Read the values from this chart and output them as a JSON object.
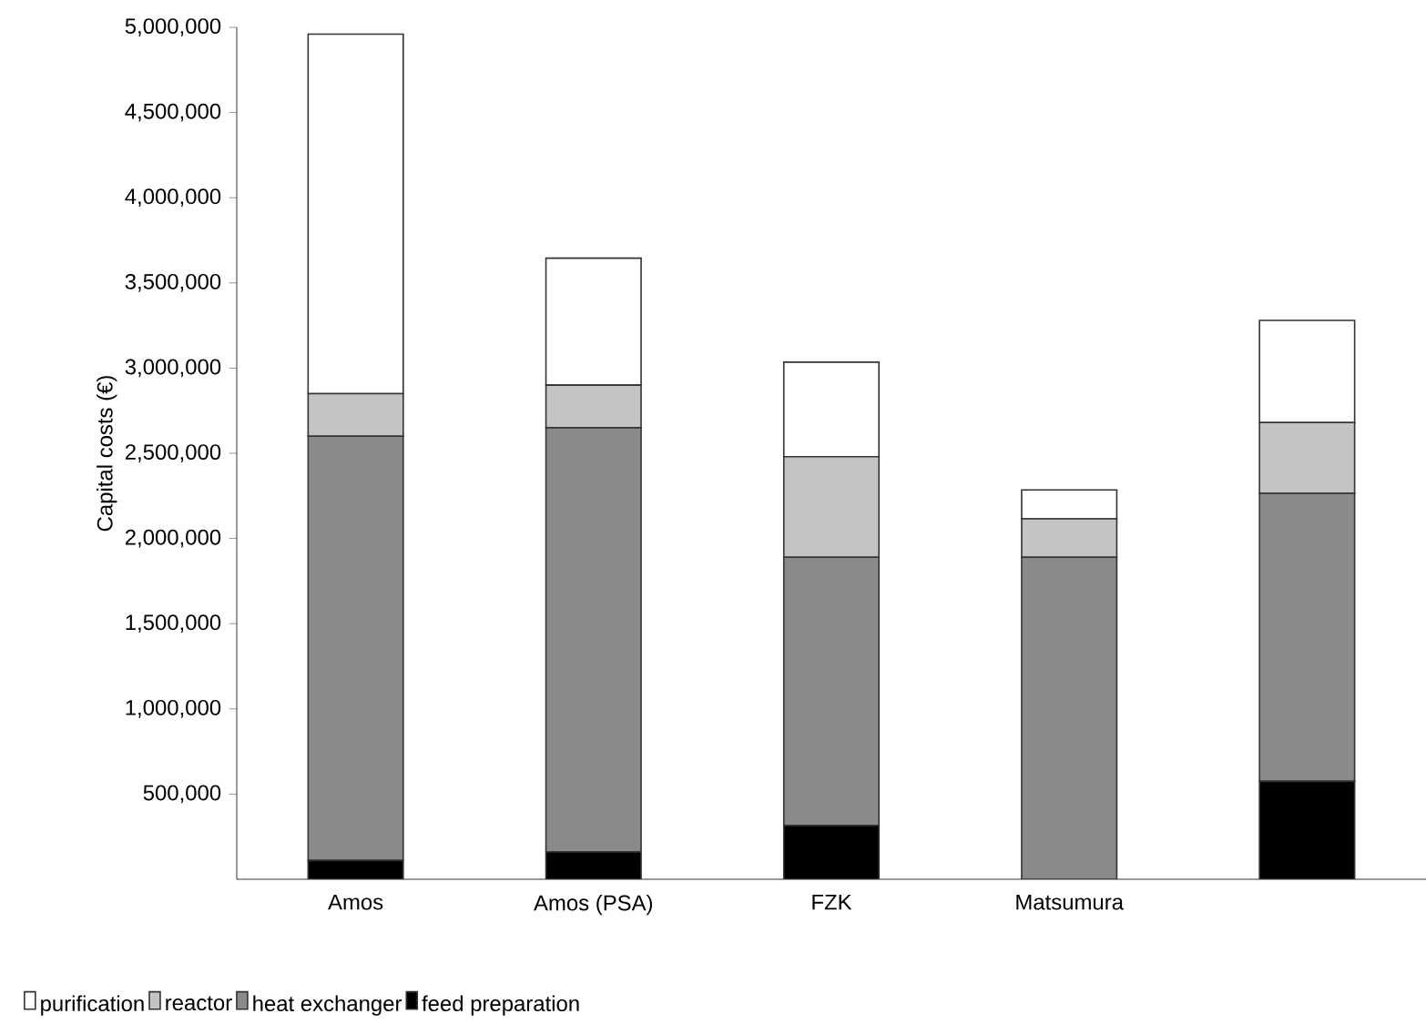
{
  "chart_data": {
    "type": "bar",
    "stacked": true,
    "ylabel": "Capital costs (€)",
    "categories": [
      "Amos",
      "Amos (PSA)",
      "FZK",
      "Matsumura",
      null
    ],
    "series": [
      {
        "name": "feed preparation",
        "color": "#000000",
        "values": [
          110000,
          160000,
          315000,
          0,
          575000
        ]
      },
      {
        "name": "heat exchanger",
        "color": "#8a8a8a",
        "values": [
          2490000,
          2490000,
          1575000,
          1890000,
          1690000
        ]
      },
      {
        "name": "reactor",
        "color": "#c4c4c4",
        "values": [
          250000,
          250000,
          590000,
          225000,
          415000
        ]
      },
      {
        "name": "purification",
        "color": "#ffffff",
        "values": [
          2110000,
          745000,
          555000,
          170000,
          600000
        ]
      }
    ],
    "ylim": [
      0,
      5000000
    ],
    "yticks": [
      {
        "value": 500000,
        "label": "500,000"
      },
      {
        "value": 1000000,
        "label": "1,000,000"
      },
      {
        "value": 1500000,
        "label": "1,500,000"
      },
      {
        "value": 2000000,
        "label": "2,000,000"
      },
      {
        "value": 2500000,
        "label": "2,500,000"
      },
      {
        "value": 3000000,
        "label": "3,000,000"
      },
      {
        "value": 3500000,
        "label": "3,500,000"
      },
      {
        "value": 4000000,
        "label": "4,000,000"
      },
      {
        "value": 4500000,
        "label": "4,500,000"
      },
      {
        "value": 5000000,
        "label": "5,000,000"
      }
    ],
    "grid": false,
    "legend": "bottom"
  }
}
